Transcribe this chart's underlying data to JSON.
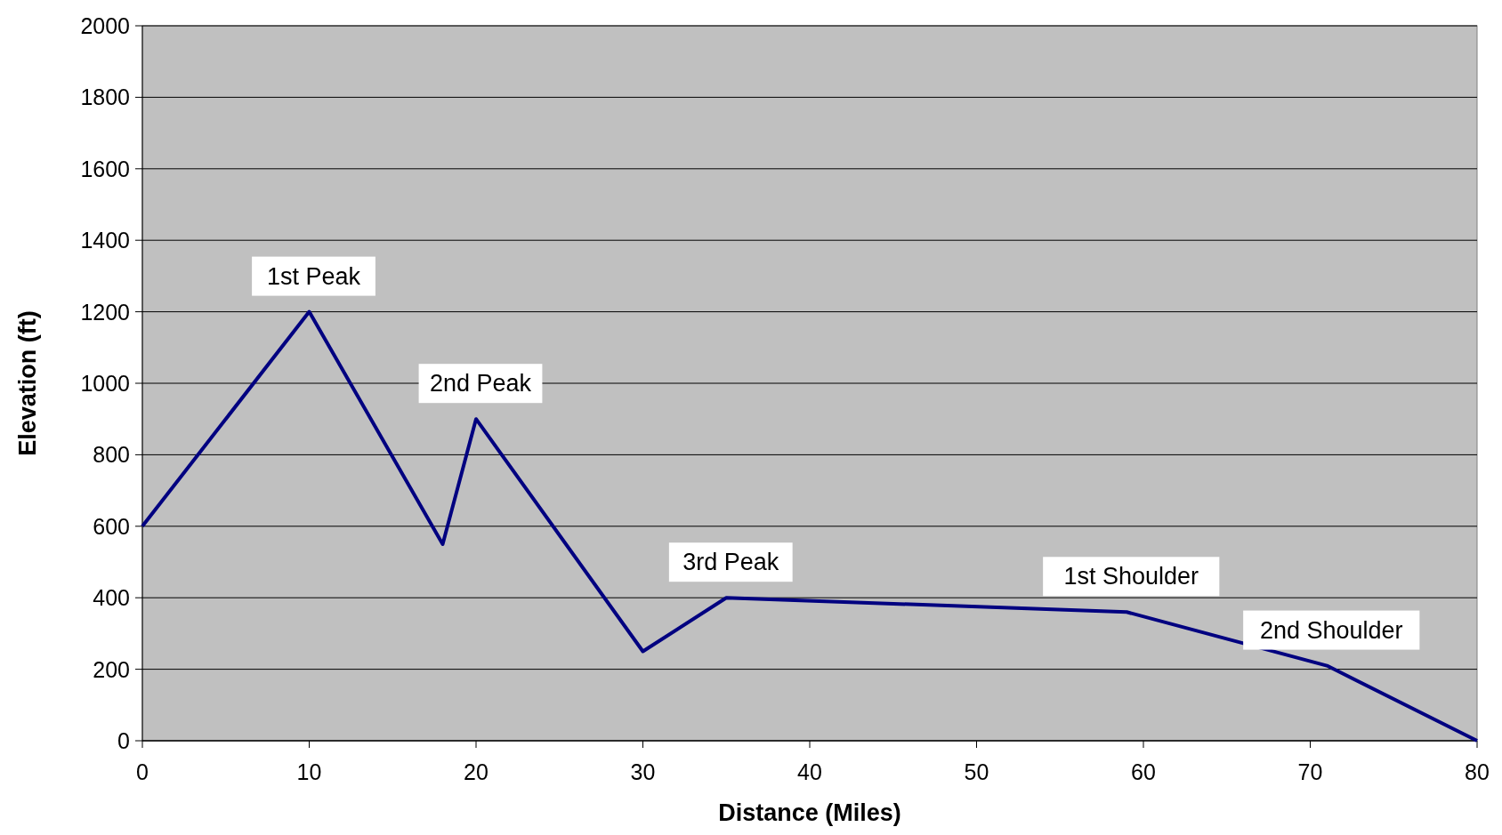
{
  "chart_data": {
    "type": "line",
    "xlabel": "Distance (Miles)",
    "ylabel": "Elevation (ft)",
    "x": [
      0,
      10,
      18,
      20,
      30,
      35,
      59,
      71,
      80
    ],
    "series": [
      {
        "color": "#000080",
        "values": [
          600,
          1200,
          550,
          900,
          250,
          400,
          360,
          210,
          0
        ]
      }
    ],
    "xlim": [
      0,
      80
    ],
    "xticks": [
      0,
      10,
      20,
      30,
      40,
      50,
      60,
      70,
      80
    ],
    "ylim": [
      0,
      2000
    ],
    "yticks": [
      0,
      200,
      400,
      600,
      800,
      1000,
      1200,
      1400,
      1600,
      1800,
      2000
    ],
    "grid": "y",
    "marker": "none",
    "line_style": "solid",
    "annotations": [
      {
        "text": "1st Peak",
        "x": 10,
        "y": 1200
      },
      {
        "text": "2nd Peak",
        "x": 20,
        "y": 900
      },
      {
        "text": "3rd Peak",
        "x": 35,
        "y": 400
      },
      {
        "text": "1st Shoulder",
        "x": 59,
        "y": 360
      },
      {
        "text": "2nd Shoulder",
        "x": 71,
        "y": 210
      }
    ]
  }
}
